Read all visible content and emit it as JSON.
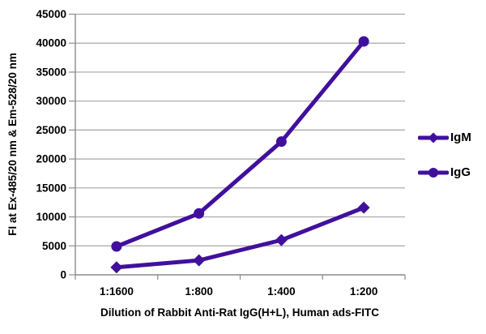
{
  "chart_data": {
    "type": "line",
    "title": "",
    "xlabel": "Dilution of Rabbit Anti-Rat IgG(H+L), Human ads-FITC",
    "ylabel": "FI at Ex-485/20 nm & Em-528/20 nm",
    "categories": [
      "1:1600",
      "1:800",
      "1:400",
      "1:200"
    ],
    "series": [
      {
        "name": "IgM",
        "marker": "diamond",
        "values": [
          1300,
          2500,
          6000,
          11600
        ]
      },
      {
        "name": "IgG",
        "marker": "circle",
        "values": [
          4900,
          10600,
          23000,
          40300
        ]
      }
    ],
    "ylim": [
      0,
      45000
    ],
    "ytick_step": 5000,
    "ytick_labels": [
      "0",
      "5000",
      "10000",
      "15000",
      "20000",
      "25000",
      "30000",
      "35000",
      "40000",
      "45000"
    ],
    "grid": true,
    "legend_position": "right",
    "colors": {
      "series": "#40109D",
      "gridline": "#A6A6A6",
      "axis": "#8C8C8C",
      "text": "#000000",
      "background": "#FFFFFF"
    }
  }
}
